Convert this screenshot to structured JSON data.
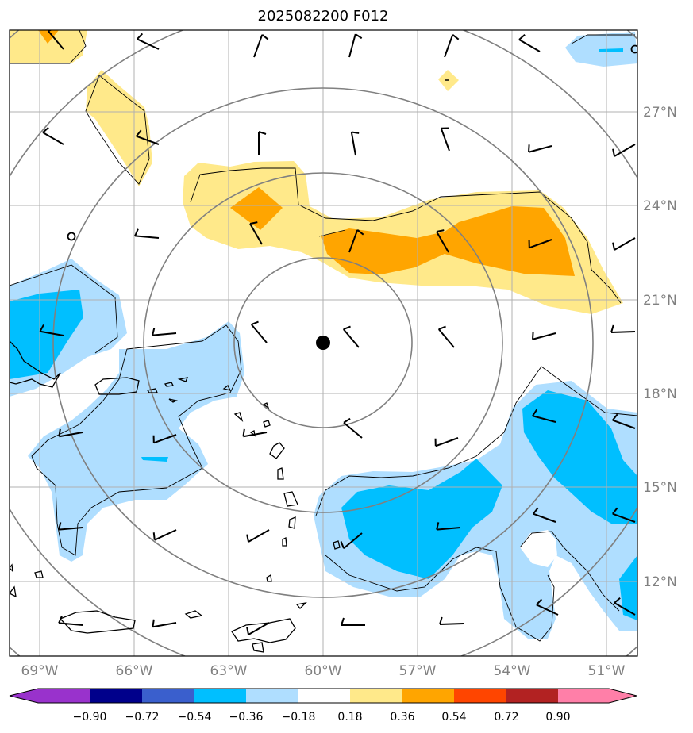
{
  "title": "2025082200 F012",
  "longitude_labels": [
    "69°W",
    "66°W",
    "63°W",
    "60°W",
    "57°W",
    "54°W",
    "51°W"
  ],
  "latitude_labels": [
    "27°N",
    "24°N",
    "21°N",
    "18°N",
    "15°N",
    "12°N"
  ],
  "colorbar": {
    "tick_labels": [
      "−0.90",
      "−0.72",
      "−0.54",
      "−0.36",
      "−0.18",
      "0.18",
      "0.36",
      "0.54",
      "0.72",
      "0.90"
    ],
    "colors": [
      "#9932cc",
      "#00008b",
      "#3a5fcd",
      "#00bfff",
      "#afdeff",
      "#ffffff",
      "#ffe98a",
      "#ffa500",
      "#ff4500",
      "#b22222",
      "#ff7fa8"
    ]
  },
  "map_data": {
    "extent": {
      "lon_min": -70,
      "lon_max": -50,
      "lat_min": 10,
      "lat_max": 30
    },
    "center_marker": {
      "lon": -60,
      "lat": 19.6
    },
    "range_rings": 5,
    "grid": true,
    "field_colors": {
      "pos_light": "#ffe98a",
      "pos_strong": "#ffa500",
      "neg_light": "#afdeff",
      "neg_strong": "#00bfff"
    }
  }
}
